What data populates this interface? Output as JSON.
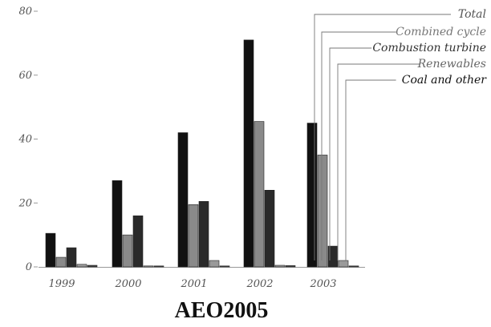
{
  "chart_data": {
    "type": "bar",
    "caption": "AEO2005",
    "categories": [
      "1999",
      "2000",
      "2001",
      "2002",
      "2003"
    ],
    "ylim": [
      0,
      80
    ],
    "yticks": [
      0,
      20,
      40,
      60,
      80
    ],
    "grid": false,
    "legend_position": "top-right",
    "series": [
      {
        "name": "Total",
        "color": "#111111",
        "values": [
          10.5,
          27,
          42,
          71,
          45
        ]
      },
      {
        "name": "Combined cycle",
        "color": "#8a8a8a",
        "values": [
          3,
          10,
          19.5,
          45.5,
          35
        ]
      },
      {
        "name": "Combustion turbine",
        "color": "#2a2a2a",
        "values": [
          6,
          16,
          20.5,
          24,
          6.5
        ]
      },
      {
        "name": "Renewables",
        "color": "#9a9a9a",
        "values": [
          0.8,
          0.3,
          2,
          0.5,
          2
        ]
      },
      {
        "name": "Coal and other",
        "color": "#444444",
        "values": [
          0.5,
          0.3,
          0.3,
          0.4,
          0.3
        ]
      }
    ]
  }
}
